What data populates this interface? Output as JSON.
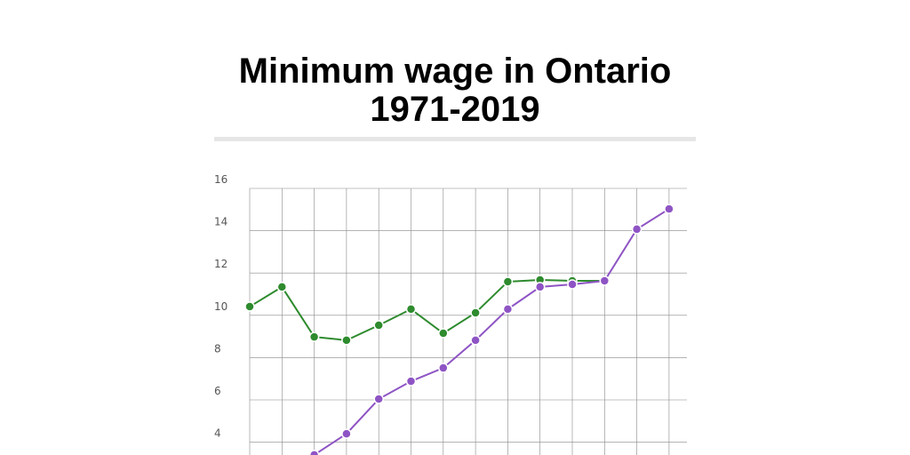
{
  "chart_data": {
    "type": "line",
    "title": [
      "Minimum wage in Ontario",
      "1971-2019"
    ],
    "categories": [
      null,
      null,
      null,
      null,
      null,
      null,
      null,
      null,
      null,
      null,
      null,
      null,
      null,
      null
    ],
    "series": [
      {
        "color": "#2e8b2e",
        "values": [
          10.41,
          11.34,
          8.98,
          8.82,
          9.53,
          10.29,
          9.15,
          10.12,
          11.59,
          11.67,
          11.63,
          11.63,
          null,
          null
        ]
      },
      {
        "color": "#8e54c4",
        "values": [
          null,
          null,
          3.4,
          4.4,
          6.04,
          6.88,
          7.51,
          8.82,
          10.29,
          11.34,
          11.46,
          11.63,
          14.07,
          15.03
        ]
      }
    ],
    "ylim": [
      0,
      16
    ],
    "yticks": [
      4,
      6,
      8,
      10,
      12,
      14,
      16
    ],
    "grid": true
  }
}
